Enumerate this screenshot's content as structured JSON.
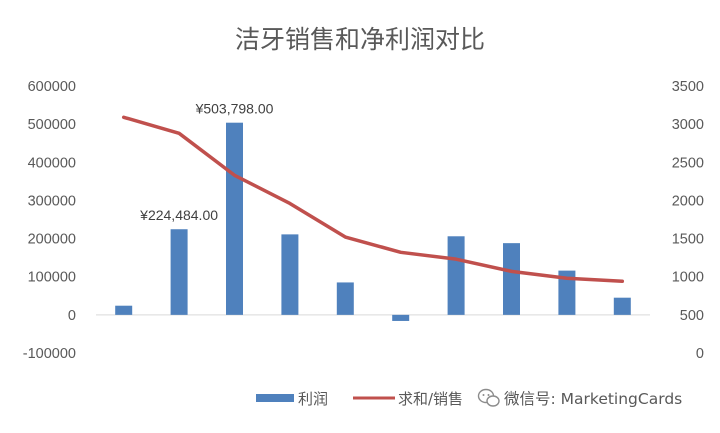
{
  "chart_data": {
    "type": "bar",
    "title": "洁牙销售和净利润对比",
    "xlabel": "",
    "ylabel": "",
    "categories": [
      "",
      "",
      "",
      "",
      "",
      "",
      "",
      "",
      "",
      ""
    ],
    "ylim": [
      -100000,
      600000
    ],
    "y_ticks": [
      "600000",
      "500000",
      "400000",
      "300000",
      "200000",
      "100000",
      "0",
      "-100000"
    ],
    "y2lim": [
      0,
      3500
    ],
    "y2_ticks": [
      "3500",
      "3000",
      "2500",
      "2000",
      "1500",
      "1000",
      "500",
      "0"
    ],
    "series": [
      {
        "name": "利润",
        "type": "bar",
        "axis": "left",
        "color": "#4f81bd",
        "values": [
          24000,
          224484,
          503798,
          211000,
          85000,
          -16000,
          206000,
          188000,
          116000,
          45000
        ]
      },
      {
        "name": "求和/销售",
        "type": "line",
        "axis": "right",
        "color": "#c0504d",
        "values": [
          3090,
          2880,
          2330,
          1960,
          1520,
          1320,
          1230,
          1070,
          980,
          940
        ]
      }
    ],
    "data_labels": [
      {
        "series": 0,
        "index": 1,
        "text": "¥224,484.00"
      },
      {
        "series": 0,
        "index": 2,
        "text": "¥503,798.00"
      }
    ],
    "legend": {
      "position": "bottom",
      "entries": [
        "利润",
        "求和/销售"
      ]
    },
    "grid": false
  },
  "watermark": {
    "text": "微信号: MarketingCards"
  }
}
